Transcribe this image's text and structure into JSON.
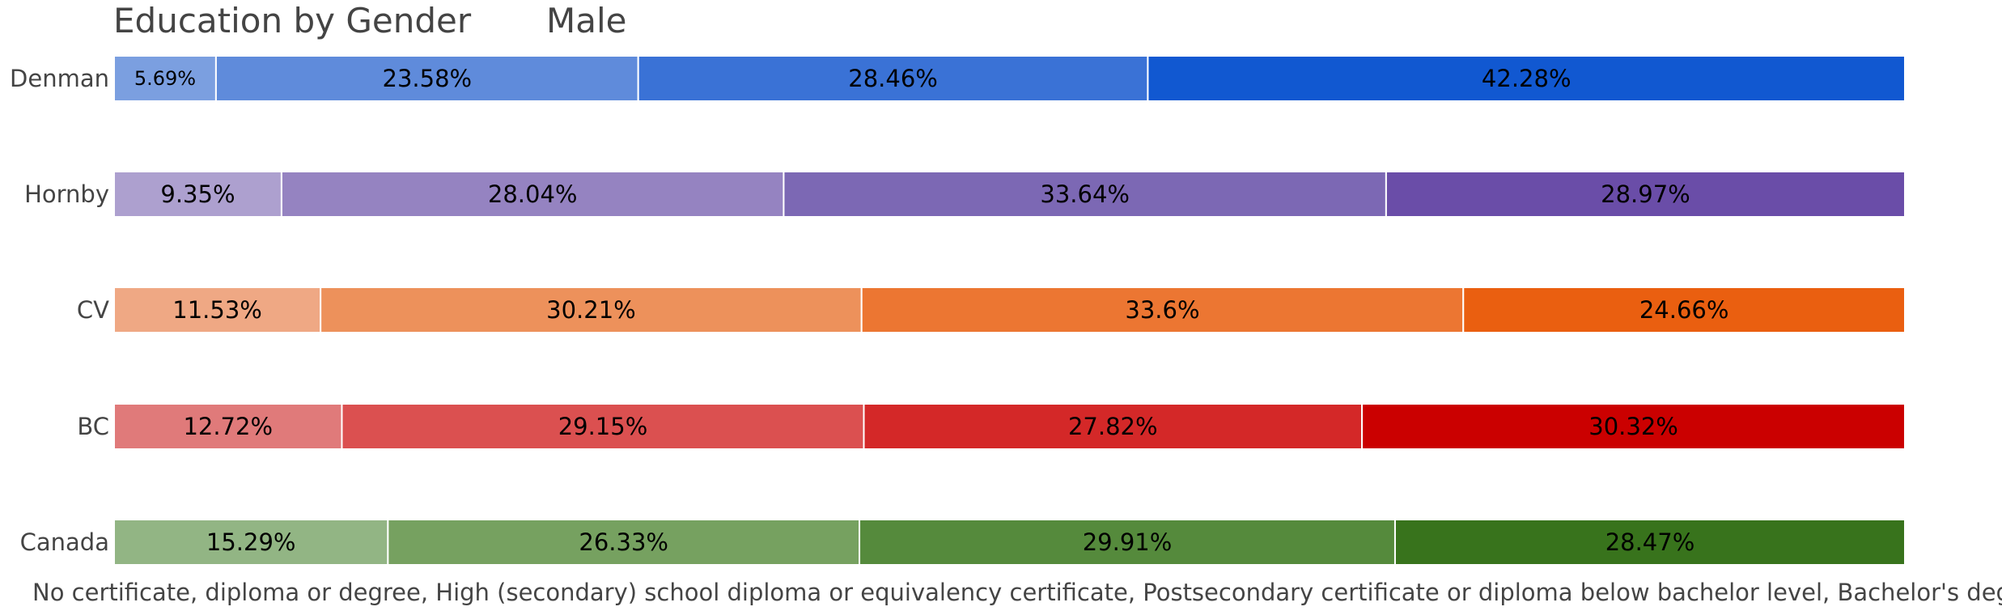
{
  "chart_data": {
    "type": "bar",
    "orientation": "horizontal",
    "stacked": true,
    "title": "Education by Gender",
    "subtitle": "Male",
    "xlabel": "No certificate, diploma or degree, High (secondary) school diploma or equivalency certificate, Postsecondary certificate or diploma below bachelor level, Bachelor's degree or",
    "ylabel": "",
    "xlim": [
      0,
      100
    ],
    "grid": false,
    "legend": "none",
    "categories": [
      "Denman",
      "Hornby",
      "CV",
      "BC",
      "Canada"
    ],
    "series": [
      {
        "name": "No certificate, diploma or degree",
        "values": [
          5.69,
          9.35,
          11.53,
          12.72,
          15.29
        ],
        "labels": [
          "5.69%",
          "9.35%",
          "11.53%",
          "12.72%",
          "15.29%"
        ]
      },
      {
        "name": "High (secondary) school diploma or equivalency certificate",
        "values": [
          23.58,
          28.04,
          30.21,
          29.15,
          26.33
        ],
        "labels": [
          "23.58%",
          "28.04%",
          "30.21%",
          "29.15%",
          "26.33%"
        ]
      },
      {
        "name": "Postsecondary certificate or diploma below bachelor level",
        "values": [
          28.46,
          33.64,
          33.6,
          27.82,
          29.91
        ],
        "labels": [
          "28.46%",
          "33.64%",
          "33.6%",
          "27.82%",
          "29.91%"
        ]
      },
      {
        "name": "Bachelor's degree or",
        "values": [
          42.28,
          28.97,
          24.66,
          30.32,
          28.47
        ],
        "labels": [
          "42.28%",
          "28.97%",
          "24.66%",
          "30.32%",
          "28.47%"
        ]
      }
    ],
    "colors": {
      "Denman": [
        "#7b9fe0",
        "#5f8bdb",
        "#3a72d6",
        "#1158d1"
      ],
      "Hornby": [
        "#ada0cf",
        "#9583c1",
        "#7c68b4",
        "#6a4da8"
      ],
      "CV": [
        "#efa884",
        "#ed915b",
        "#ec7632",
        "#ea5f10"
      ],
      "BC": [
        "#e07a7a",
        "#db5050",
        "#d42828",
        "#cb0000"
      ],
      "Canada": [
        "#92b584",
        "#76a160",
        "#558a3c",
        "#38731c"
      ]
    }
  }
}
